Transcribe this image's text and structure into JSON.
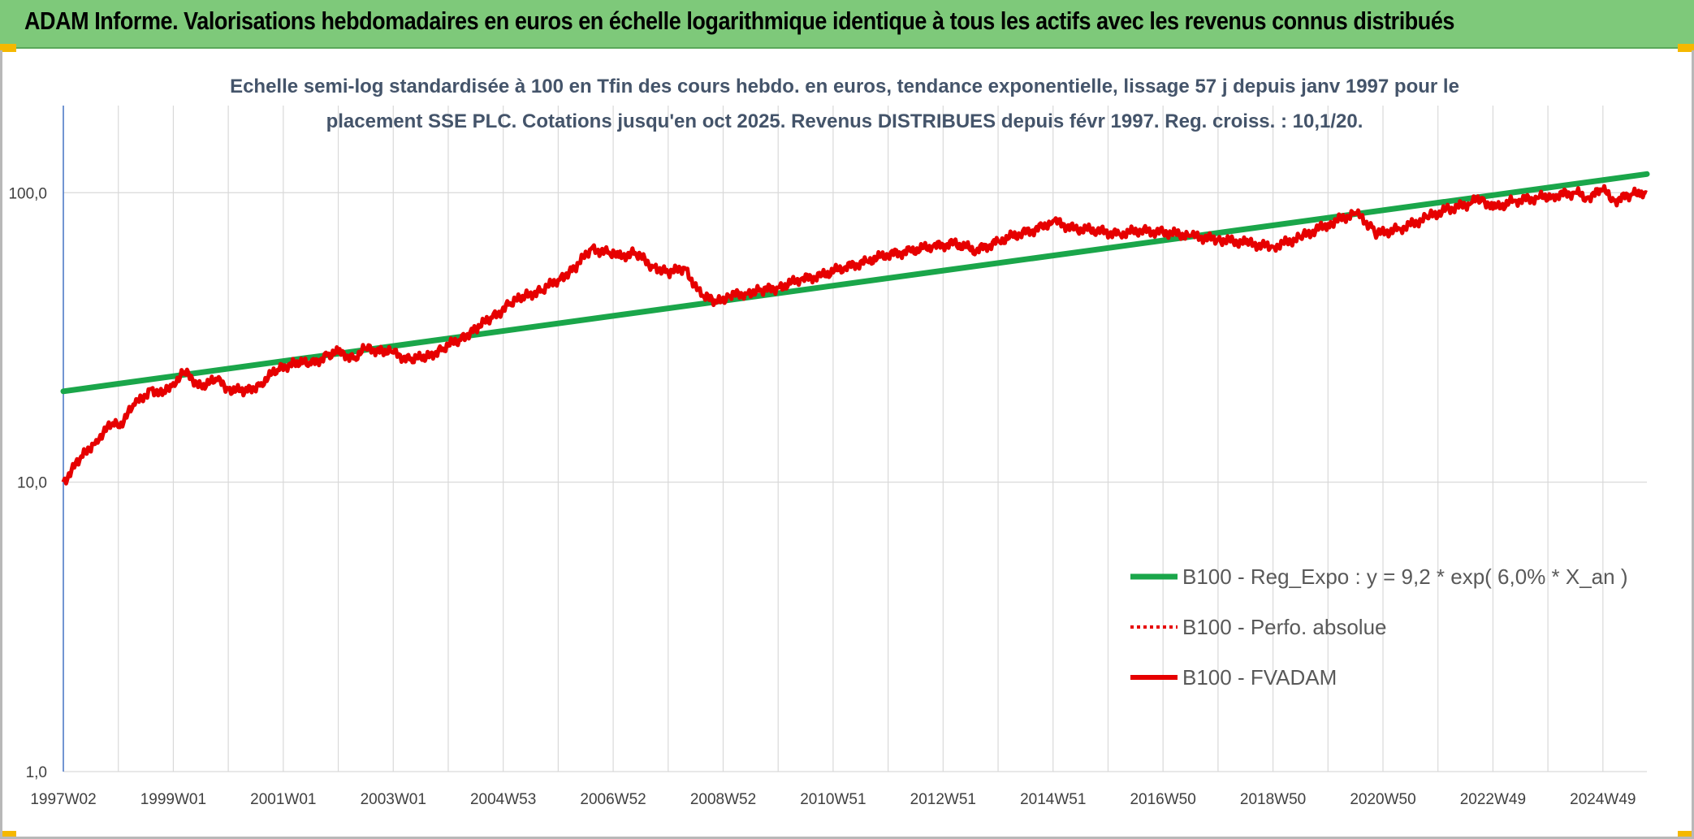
{
  "header": {
    "title": "ADAM Informe. Valorisations hebdomadaires en euros en échelle logarithmique identique à tous les actifs avec les revenus connus distribués"
  },
  "colors": {
    "header_bg": "#7ec97a",
    "trend": "#1aa64a",
    "series": "#e60000",
    "grid": "#d9d9d9",
    "axis": "#4472c4"
  },
  "chart_data": {
    "type": "line",
    "scale": "log",
    "title_lines": [
      "Echelle semi-log standardisée à 100 en Tfin des cours hebdo. en euros, tendance exponentielle, lissage 57 j depuis janv 1997 pour le",
      "placement SSE PLC. Cotations jusqu'en oct 2025. Revenus DISTRIBUES depuis févr 1997. Reg. croiss. : 10,1/20."
    ],
    "x_range": [
      1997.0,
      2025.8
    ],
    "ylim": [
      1,
      200
    ],
    "y_ticks": [
      {
        "value": 1,
        "label": "1,0"
      },
      {
        "value": 10,
        "label": "10,0"
      },
      {
        "value": 100,
        "label": "100,0"
      }
    ],
    "x_ticks": [
      {
        "x": 1997.0,
        "label": "1997W02"
      },
      {
        "x": 1999.0,
        "label": "1999W01"
      },
      {
        "x": 2001.0,
        "label": "2001W01"
      },
      {
        "x": 2003.0,
        "label": "2003W01"
      },
      {
        "x": 2005.0,
        "label": "2004W53"
      },
      {
        "x": 2007.0,
        "label": "2006W52"
      },
      {
        "x": 2009.0,
        "label": "2008W52"
      },
      {
        "x": 2011.0,
        "label": "2010W51"
      },
      {
        "x": 2013.0,
        "label": "2012W51"
      },
      {
        "x": 2015.0,
        "label": "2014W51"
      },
      {
        "x": 2017.0,
        "label": "2016W50"
      },
      {
        "x": 2019.0,
        "label": "2018W50"
      },
      {
        "x": 2021.0,
        "label": "2020W50"
      },
      {
        "x": 2023.0,
        "label": "2022W49"
      },
      {
        "x": 2025.0,
        "label": "2024W49"
      }
    ],
    "gridlines": true,
    "legend_position": "right-center",
    "series": [
      {
        "name": "B100 - Reg_Expo : y = 9,2 * exp( 6,0% *  X_an )",
        "style": "solid-thick",
        "color": "#1aa64a",
        "x": [
          1997.0,
          2025.8
        ],
        "y": [
          20.6,
          116.0
        ]
      },
      {
        "name": "B100 - Perfo. absolue",
        "style": "dotted",
        "color": "#e60000",
        "x": [],
        "y": []
      },
      {
        "name": "B100 - FVADAM",
        "style": "solid",
        "color": "#e60000",
        "x": [
          1997.0,
          1997.3,
          1997.6,
          1997.9,
          1998.0,
          1998.3,
          1998.6,
          1998.8,
          1999.0,
          1999.2,
          1999.5,
          1999.8,
          2000.0,
          2000.3,
          2000.6,
          2000.9,
          2001.2,
          2001.5,
          2001.8,
          2002.0,
          2002.3,
          2002.5,
          2002.8,
          2003.0,
          2003.3,
          2003.6,
          2003.9,
          2004.2,
          2004.5,
          2004.8,
          2005.1,
          2005.4,
          2005.7,
          2006.0,
          2006.3,
          2006.6,
          2006.9,
          2007.1,
          2007.4,
          2007.7,
          2008.0,
          2008.3,
          2008.6,
          2008.9,
          2009.1,
          2009.4,
          2009.7,
          2010.0,
          2010.4,
          2010.8,
          2011.2,
          2011.6,
          2012.0,
          2012.4,
          2012.8,
          2013.2,
          2013.6,
          2014.0,
          2014.4,
          2014.8,
          2015.0,
          2015.4,
          2015.8,
          2016.2,
          2016.6,
          2017.0,
          2017.5,
          2018.0,
          2018.5,
          2019.0,
          2019.5,
          2020.0,
          2020.5,
          2020.8,
          2020.9,
          2021.3,
          2021.8,
          2022.2,
          2022.6,
          2022.8,
          2023.0,
          2023.4,
          2023.8,
          2024.1,
          2024.5,
          2024.7,
          2025.0,
          2025.2,
          2025.5,
          2025.7,
          2025.8
        ],
        "y": [
          10.0,
          12.0,
          14.0,
          16.0,
          15.5,
          18.5,
          21.0,
          20.0,
          22.0,
          24.0,
          21.5,
          22.5,
          21.0,
          20.5,
          22.0,
          24.5,
          26.0,
          25.5,
          27.5,
          28.0,
          27.0,
          29.0,
          28.5,
          28.0,
          26.5,
          27.0,
          29.0,
          31.0,
          34.0,
          37.0,
          41.0,
          44.0,
          46.0,
          50.0,
          55.0,
          64.0,
          62.0,
          60.0,
          62.0,
          56.0,
          53.0,
          55.0,
          44.0,
          42.0,
          44.0,
          45.0,
          46.0,
          47.0,
          50.0,
          52.0,
          55.0,
          58.0,
          61.0,
          63.0,
          65.0,
          67.0,
          63.0,
          68.0,
          72.0,
          76.0,
          80.0,
          75.0,
          74.0,
          72.0,
          74.0,
          73.0,
          71.0,
          69.0,
          67.0,
          65.0,
          70.0,
          78.0,
          85.0,
          76.0,
          72.0,
          75.0,
          82.0,
          88.0,
          92.0,
          96.0,
          88.0,
          94.0,
          96.0,
          98.0,
          100.0,
          96.0,
          102.0,
          94.0,
          98.0,
          101.0,
          100.0
        ]
      }
    ]
  }
}
